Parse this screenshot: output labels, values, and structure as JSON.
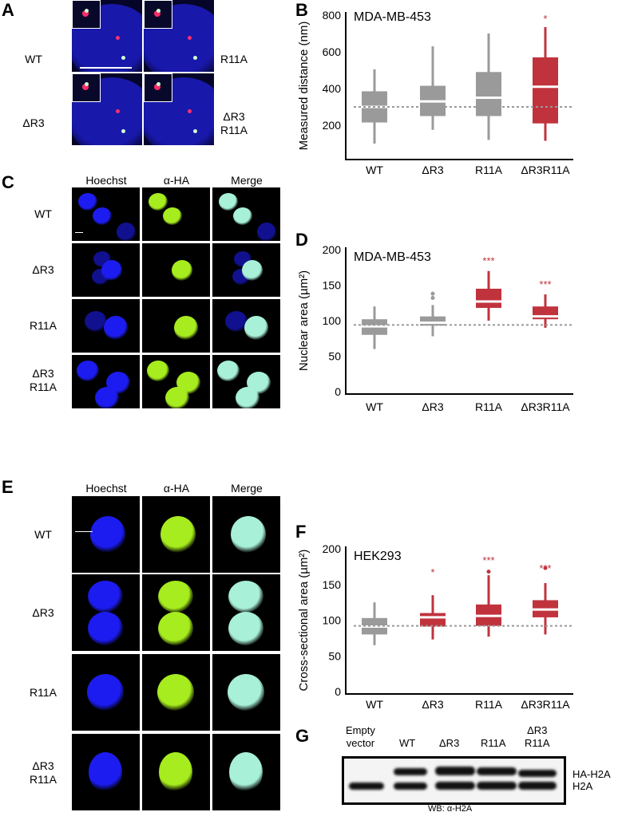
{
  "panel_letters": {
    "a": "A",
    "b": "B",
    "c": "C",
    "d": "D",
    "e": "E",
    "f": "F",
    "g": "G"
  },
  "panel_a": {
    "labels": [
      "WT",
      "R11A",
      "ΔR3",
      "ΔR3\nR11A"
    ]
  },
  "panel_c": {
    "columns": [
      "Hoechst",
      "α-HA",
      "Merge"
    ],
    "rows": [
      "WT",
      "ΔR3",
      "R11A",
      "ΔR3\nR11A"
    ]
  },
  "panel_e": {
    "columns": [
      "Hoechst",
      "α-HA",
      "Merge"
    ],
    "rows": [
      "WT",
      "ΔR3",
      "R11A",
      "ΔR3\nR11A"
    ]
  },
  "panel_g": {
    "lanes": [
      "Empty\nvector",
      "WT",
      "ΔR3",
      "R11A",
      "ΔR3\nR11A"
    ],
    "bands": [
      "HA-H2A",
      "H2A"
    ],
    "caption": "WB: α-H2A"
  },
  "colors": {
    "control": "#9a9a9a",
    "significant": "#c0333d",
    "hoechst": "#1c1cf0",
    "ha": "#a6ec1e",
    "merge": "#a8f0d8"
  },
  "chart_data": [
    {
      "id": "B",
      "type": "box",
      "title": "MDA-MB-453",
      "ylabel": "Measured distance (nm)",
      "ylim": [
        0,
        800
      ],
      "yticks": [
        200,
        400,
        600,
        800
      ],
      "reference_line": 300,
      "categories": [
        "WT",
        "ΔR3",
        "R11A",
        "ΔR3R11A"
      ],
      "boxes": [
        {
          "min": 100,
          "q1": 215,
          "median": 300,
          "q3": 385,
          "max": 505,
          "outliers": [],
          "significance": "",
          "highlight": false
        },
        {
          "min": 175,
          "q1": 250,
          "median": 330,
          "q3": 415,
          "max": 630,
          "outliers": [],
          "significance": "",
          "highlight": false
        },
        {
          "min": 120,
          "q1": 250,
          "median": 350,
          "q3": 490,
          "max": 700,
          "outliers": [],
          "significance": "",
          "highlight": false
        },
        {
          "min": 115,
          "q1": 210,
          "median": 410,
          "q3": 570,
          "max": 735,
          "outliers": [],
          "significance": "*",
          "highlight": true
        }
      ]
    },
    {
      "id": "D",
      "type": "box",
      "title": "MDA-MB-453",
      "ylabel": "Nuclear area (µm²)",
      "ylim": [
        0,
        200
      ],
      "yticks": [
        0,
        50,
        100,
        150,
        200
      ],
      "reference_line": 94,
      "categories": [
        "WT",
        "ΔR3",
        "R11A",
        "ΔR3R11A"
      ],
      "boxes": [
        {
          "min": 60,
          "q1": 80,
          "median": 92,
          "q3": 102,
          "max": 120,
          "outliers": [],
          "significance": "",
          "highlight": false
        },
        {
          "min": 78,
          "q1": 93,
          "median": 97,
          "q3": 106,
          "max": 122,
          "outliers": [
            132,
            138
          ],
          "significance": "",
          "highlight": false
        },
        {
          "min": 100,
          "q1": 118,
          "median": 127,
          "q3": 145,
          "max": 170,
          "outliers": [],
          "significance": "***",
          "highlight": true
        },
        {
          "min": 90,
          "q1": 102,
          "median": 106,
          "q3": 120,
          "max": 137,
          "outliers": [],
          "significance": "***",
          "highlight": true
        }
      ]
    },
    {
      "id": "F",
      "type": "box",
      "title": "HEK293",
      "ylabel": "Cross-sectional area (µm²)",
      "ylim": [
        0,
        200
      ],
      "yticks": [
        0,
        50,
        100,
        150,
        200
      ],
      "reference_line": 92,
      "categories": [
        "WT",
        "ΔR3",
        "R11A",
        "ΔR3R11A"
      ],
      "boxes": [
        {
          "min": 65,
          "q1": 80,
          "median": 91,
          "q3": 103,
          "max": 125,
          "outliers": [],
          "significance": "",
          "highlight": false
        },
        {
          "min": 73,
          "q1": 91,
          "median": 104,
          "q3": 110,
          "max": 135,
          "outliers": [],
          "significance": "*",
          "highlight": true
        },
        {
          "min": 77,
          "q1": 92,
          "median": 106,
          "q3": 122,
          "max": 163,
          "outliers": [
            168
          ],
          "significance": "***",
          "highlight": true
        },
        {
          "min": 80,
          "q1": 104,
          "median": 115,
          "q3": 128,
          "max": 152,
          "outliers": [
            173
          ],
          "significance": "***",
          "highlight": true
        }
      ]
    }
  ]
}
